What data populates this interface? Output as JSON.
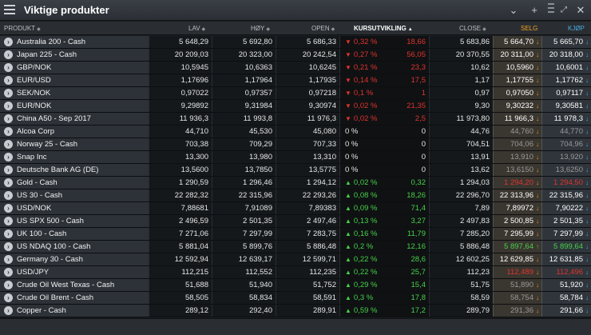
{
  "window": {
    "title": "Viktige produkter"
  },
  "columns": {
    "produkt": "PRODUKT",
    "lav": "LAV",
    "hoy": "HØY",
    "open": "OPEN",
    "kurs": "KURSUTVIKLING",
    "close": "CLOSE",
    "selg": "SELG",
    "kjop": "KJØP"
  },
  "colors": {
    "up": "#47d14a",
    "down": "#e0342e",
    "selg": "#f0a020",
    "kjop": "#4aa8e0"
  },
  "rows": [
    {
      "name": "Australia 200 - Cash",
      "lav": "5 648,29",
      "hoy": "5 692,80",
      "open": "5 686,33",
      "dir": "down",
      "pct": "0,32 %",
      "chg": "18,66",
      "close": "5 683,86",
      "selg": "5 664,70",
      "kjop": "5 665,70",
      "sdir": "down",
      "kdir": "down"
    },
    {
      "name": "Japan 225 - Cash",
      "lav": "20 209,03",
      "hoy": "20 323,00",
      "open": "20 242,54",
      "dir": "down",
      "pct": "0,27 %",
      "chg": "56,05",
      "close": "20 370,55",
      "selg": "20 311,00",
      "kjop": "20 318,00",
      "sdir": "down",
      "kdir": "down"
    },
    {
      "name": "GBP/NOK",
      "lav": "10,5945",
      "hoy": "10,6363",
      "open": "10,6245",
      "dir": "down",
      "pct": "0,21 %",
      "chg": "23,3",
      "close": "10,62",
      "selg": "10,5960",
      "kjop": "10,6001",
      "sdir": "down",
      "kdir": "down"
    },
    {
      "name": "EUR/USD",
      "lav": "1,17696",
      "hoy": "1,17964",
      "open": "1,17935",
      "dir": "down",
      "pct": "0,14 %",
      "chg": "17,5",
      "close": "1,17",
      "selg": "1,17755",
      "kjop": "1,17762",
      "sdir": "down",
      "kdir": "down"
    },
    {
      "name": "SEK/NOK",
      "lav": "0,97022",
      "hoy": "0,97357",
      "open": "0,97218",
      "dir": "down",
      "pct": "0,1 %",
      "chg": "1",
      "close": "0,97",
      "selg": "0,97050",
      "kjop": "0,97117",
      "sdir": "down",
      "kdir": "down"
    },
    {
      "name": "EUR/NOK",
      "lav": "9,29892",
      "hoy": "9,31984",
      "open": "9,30974",
      "dir": "down",
      "pct": "0,02 %",
      "chg": "21,35",
      "close": "9,30",
      "selg": "9,30232",
      "kjop": "9,30581",
      "sdir": "down",
      "kdir": "down"
    },
    {
      "name": "China A50 - Sep 2017",
      "lav": "11 936,3",
      "hoy": "11 993,8",
      "open": "11 976,3",
      "dir": "down",
      "pct": "0,02 %",
      "chg": "2,5",
      "close": "11 973,80",
      "selg": "11 966,3",
      "kjop": "11 978,3",
      "sdir": "down",
      "kdir": "down"
    },
    {
      "name": "Alcoa Corp",
      "lav": "44,710",
      "hoy": "45,530",
      "open": "45,080",
      "dir": "neutral",
      "pct": "0 %",
      "chg": "0",
      "close": "44,76",
      "selg": "44,760",
      "kjop": "44,770",
      "sdir": "down",
      "kdir": "down"
    },
    {
      "name": "Norway 25 - Cash",
      "lav": "703,38",
      "hoy": "709,29",
      "open": "707,33",
      "dir": "neutral",
      "pct": "0 %",
      "chg": "0",
      "close": "704,51",
      "selg": "704,06",
      "kjop": "704,96",
      "sdir": "down",
      "kdir": "down"
    },
    {
      "name": "Snap Inc",
      "lav": "13,300",
      "hoy": "13,980",
      "open": "13,310",
      "dir": "neutral",
      "pct": "0 %",
      "chg": "0",
      "close": "13,91",
      "selg": "13,910",
      "kjop": "13,920",
      "sdir": "down",
      "kdir": "down"
    },
    {
      "name": "Deutsche Bank AG (DE)",
      "lav": "13,5600",
      "hoy": "13,7850",
      "open": "13,5775",
      "dir": "neutral",
      "pct": "0 %",
      "chg": "0",
      "close": "13,62",
      "selg": "13,6150",
      "kjop": "13,6250",
      "sdir": "down",
      "kdir": "down"
    },
    {
      "name": "Gold - Cash",
      "lav": "1 290,59",
      "hoy": "1 296,46",
      "open": "1 294,12",
      "dir": "up",
      "pct": "0,02 %",
      "chg": "0,32",
      "close": "1 294,03",
      "selg": "1 294,20",
      "kjop": "1 294,50",
      "sdir": "down",
      "kdir": "down"
    },
    {
      "name": "US 30 - Cash",
      "lav": "22 282,32",
      "hoy": "22 315,96",
      "open": "22 293,26",
      "dir": "up",
      "pct": "0,08 %",
      "chg": "18,26",
      "close": "22 296,70",
      "selg": "22 313,96",
      "kjop": "22 315,96",
      "sdir": "down",
      "kdir": "down"
    },
    {
      "name": "USD/NOK",
      "lav": "7,88681",
      "hoy": "7,91089",
      "open": "7,89383",
      "dir": "up",
      "pct": "0,09 %",
      "chg": "71,4",
      "close": "7,89",
      "selg": "7,89972",
      "kjop": "7,90222",
      "sdir": "down",
      "kdir": "down"
    },
    {
      "name": "US SPX 500 - Cash",
      "lav": "2 496,59",
      "hoy": "2 501,35",
      "open": "2 497,46",
      "dir": "up",
      "pct": "0,13 %",
      "chg": "3,27",
      "close": "2 497,83",
      "selg": "2 500,85",
      "kjop": "2 501,35",
      "sdir": "down",
      "kdir": "down"
    },
    {
      "name": "UK 100 - Cash",
      "lav": "7 271,06",
      "hoy": "7 297,99",
      "open": "7 283,75",
      "dir": "up",
      "pct": "0,16 %",
      "chg": "11,79",
      "close": "7 285,20",
      "selg": "7 295,99",
      "kjop": "7 297,99",
      "sdir": "down",
      "kdir": "down"
    },
    {
      "name": "US NDAQ 100 - Cash",
      "lav": "5 881,04",
      "hoy": "5 899,76",
      "open": "5 886,48",
      "dir": "up",
      "pct": "0,2 %",
      "chg": "12,16",
      "close": "5 886,48",
      "selg": "5 897,64",
      "kjop": "5 899,64",
      "sdir": "up",
      "kdir": "down"
    },
    {
      "name": "Germany 30 - Cash",
      "lav": "12 592,94",
      "hoy": "12 639,17",
      "open": "12 599,71",
      "dir": "up",
      "pct": "0,22 %",
      "chg": "28,6",
      "close": "12 602,25",
      "selg": "12 629,85",
      "kjop": "12 631,85",
      "sdir": "down",
      "kdir": "down"
    },
    {
      "name": "USD/JPY",
      "lav": "112,215",
      "hoy": "112,552",
      "open": "112,235",
      "dir": "up",
      "pct": "0,22 %",
      "chg": "25,7",
      "close": "112,23",
      "selg": "112,489",
      "kjop": "112,496",
      "sdir": "down",
      "kdir": "down"
    },
    {
      "name": "Crude Oil West Texas - Cash",
      "lav": "51,688",
      "hoy": "51,940",
      "open": "51,752",
      "dir": "up",
      "pct": "0,29 %",
      "chg": "15,4",
      "close": "51,75",
      "selg": "51,890",
      "kjop": "51,920",
      "sdir": "down",
      "kdir": "down"
    },
    {
      "name": "Crude Oil Brent - Cash",
      "lav": "58,505",
      "hoy": "58,834",
      "open": "58,591",
      "dir": "up",
      "pct": "0,3 %",
      "chg": "17,8",
      "close": "58,59",
      "selg": "58,754",
      "kjop": "58,784",
      "sdir": "down",
      "kdir": "down"
    },
    {
      "name": "Copper - Cash",
      "lav": "289,12",
      "hoy": "292,40",
      "open": "289,91",
      "dir": "up",
      "pct": "0,59 %",
      "chg": "17,2",
      "close": "289,79",
      "selg": "291,36",
      "kjop": "291,66",
      "sdir": "down",
      "kdir": "down"
    }
  ]
}
